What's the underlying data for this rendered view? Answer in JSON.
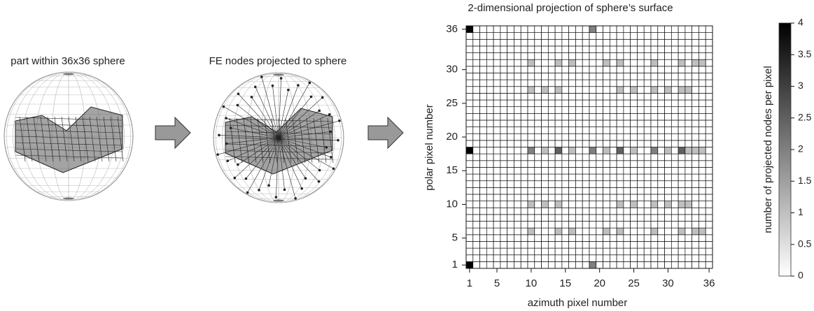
{
  "panels": {
    "left_label": "part within 36x36 sphere",
    "middle_label": "FE nodes projected to sphere"
  },
  "chart_data": {
    "type": "heatmap",
    "title": "2-dimensional projection of sphere’s surface",
    "x_label": "azimuth pixel number",
    "y_label": "polar pixel number",
    "xlim": [
      0.5,
      36.5
    ],
    "ylim": [
      0.5,
      36.5
    ],
    "xticks": [
      1,
      5,
      10,
      15,
      20,
      25,
      30,
      36
    ],
    "yticks": [
      1,
      5,
      10,
      15,
      20,
      25,
      30,
      36
    ],
    "colormap": [
      "#ffffff",
      "#000000"
    ],
    "clim": [
      0,
      4
    ],
    "cticks": [
      0,
      0.5,
      1,
      1.5,
      2,
      2.5,
      3,
      3.5,
      4
    ],
    "colorbar_label": "number of projected nodes per pixel",
    "z": [
      [
        4,
        0,
        0,
        0,
        0,
        0,
        0,
        0,
        0,
        0,
        0,
        0,
        0,
        0,
        0,
        0,
        0,
        0,
        2,
        0,
        0,
        0,
        0,
        0,
        0,
        0,
        0,
        0,
        0,
        0,
        0,
        0,
        0,
        0,
        0,
        0
      ],
      [
        0,
        0,
        0,
        0,
        0,
        0,
        0,
        0,
        0,
        0,
        0,
        0,
        0,
        0,
        0,
        0,
        0,
        0,
        0,
        0,
        0,
        0,
        0,
        0,
        0,
        0,
        0,
        0,
        0,
        0,
        0,
        0,
        0,
        0,
        0,
        0
      ],
      [
        0,
        0,
        0,
        0,
        0,
        0,
        0,
        0,
        0,
        0,
        0,
        0,
        0,
        0,
        0,
        0,
        0,
        0,
        0,
        0,
        0,
        0,
        0,
        0,
        0,
        0,
        0,
        0,
        0,
        0,
        0,
        0,
        0,
        0,
        0,
        0
      ],
      [
        0,
        0,
        0,
        0,
        0,
        0,
        0,
        0,
        0,
        0,
        0,
        0,
        0,
        0,
        0,
        0,
        0,
        0,
        0,
        0,
        0,
        0,
        0,
        0,
        0,
        0,
        0,
        0,
        0,
        0,
        0,
        0,
        0,
        0,
        0,
        0
      ],
      [
        0,
        0,
        0,
        0,
        0,
        0,
        0,
        0,
        0,
        0,
        0,
        0,
        0,
        0,
        0,
        0,
        0,
        0,
        0,
        0,
        0,
        0,
        0,
        0,
        0,
        0,
        0,
        0,
        0,
        0,
        0,
        0,
        0,
        0,
        0,
        0
      ],
      [
        0,
        0,
        0,
        0,
        0,
        0,
        0,
        0,
        0,
        1,
        0,
        0,
        0,
        1,
        0,
        1,
        0,
        0,
        0,
        0,
        1,
        0,
        1,
        0,
        0,
        0,
        0,
        1,
        0,
        0,
        0,
        1,
        0,
        1,
        1,
        0
      ],
      [
        0,
        0,
        0,
        0,
        0,
        0,
        0,
        0,
        0,
        0,
        0,
        0,
        0,
        0,
        0,
        0,
        0,
        0,
        0,
        0,
        0,
        0,
        0,
        0,
        0,
        0,
        0,
        0,
        0,
        0,
        0,
        0,
        0,
        0,
        0,
        0
      ],
      [
        0,
        0,
        0,
        0,
        0,
        0,
        0,
        0,
        0,
        0,
        0,
        0,
        0,
        0,
        0,
        0,
        0,
        0,
        0,
        0,
        0,
        0,
        0,
        0,
        0,
        0,
        0,
        0,
        0,
        0,
        0,
        0,
        0,
        0,
        0,
        0
      ],
      [
        0,
        0,
        0,
        0,
        0,
        0,
        0,
        0,
        0,
        0,
        0,
        0,
        0,
        0,
        0,
        0,
        0,
        0,
        0,
        0,
        0,
        0,
        0,
        0,
        0,
        0,
        0,
        0,
        0,
        0,
        0,
        0,
        0,
        0,
        0,
        0
      ],
      [
        0,
        0,
        0,
        0,
        0,
        0,
        0,
        0,
        0,
        1,
        0,
        1,
        0,
        1,
        0,
        0,
        0,
        0,
        0,
        0,
        0,
        0,
        1,
        0,
        1,
        0,
        0,
        1,
        0,
        1,
        0,
        1,
        1,
        0,
        0,
        0
      ],
      [
        0,
        0,
        0,
        0,
        0,
        0,
        0,
        0,
        0,
        0,
        0,
        0,
        0,
        0,
        0,
        0,
        0,
        0,
        0,
        0,
        0,
        0,
        0,
        0,
        0,
        0,
        0,
        0,
        0,
        0,
        0,
        0,
        0,
        0,
        0,
        0
      ],
      [
        0,
        0,
        0,
        0,
        0,
        0,
        0,
        0,
        0,
        0,
        0,
        0,
        0,
        0,
        0,
        0,
        0,
        0,
        0,
        0,
        0,
        0,
        0,
        0,
        0,
        0,
        0,
        0,
        0,
        0,
        0,
        0,
        0,
        0,
        0,
        0
      ],
      [
        0,
        0,
        0,
        0,
        0,
        0,
        0,
        0,
        0,
        0,
        0,
        0,
        0,
        0,
        0,
        0,
        0,
        0,
        0,
        0,
        0,
        0,
        0,
        0,
        0,
        0,
        0,
        0,
        0,
        0,
        0,
        0,
        0,
        0,
        0,
        0
      ],
      [
        0,
        0,
        0,
        0,
        0,
        0,
        0,
        0,
        0,
        0,
        0,
        0,
        0,
        0,
        0,
        0,
        0,
        0,
        0,
        0,
        0,
        0,
        0,
        0,
        0,
        0,
        0,
        0,
        0,
        0,
        0,
        0,
        0,
        0,
        0,
        0
      ],
      [
        0,
        0,
        0,
        0,
        0,
        0,
        0,
        0,
        0,
        0,
        0,
        0,
        0,
        0,
        0,
        0,
        0,
        0,
        0,
        0,
        0,
        0,
        0,
        0,
        0,
        0,
        0,
        0,
        0,
        0,
        0,
        0,
        0,
        0,
        0,
        0
      ],
      [
        0,
        0,
        0,
        0,
        0,
        0,
        0,
        0,
        0,
        0,
        0,
        0,
        0,
        0,
        0,
        0,
        0,
        0,
        0,
        0,
        0,
        0,
        0,
        0,
        0,
        0,
        0,
        0,
        0,
        0,
        0,
        0,
        0,
        0,
        0,
        0
      ],
      [
        0,
        0,
        0,
        0,
        0,
        0,
        0,
        0,
        0,
        0,
        0,
        0,
        0,
        0,
        0,
        0,
        0,
        0,
        0,
        0,
        0,
        0,
        0,
        0,
        0,
        0,
        0,
        0,
        0,
        0,
        0,
        0,
        0,
        0,
        0,
        0
      ],
      [
        4,
        0,
        0,
        0,
        0,
        0,
        0,
        0,
        0,
        2,
        0,
        1,
        0,
        2.5,
        0,
        1,
        0,
        0,
        2,
        0,
        1,
        0,
        2.5,
        0,
        1,
        0,
        0,
        2,
        0,
        1,
        0,
        2.5,
        1,
        1,
        1,
        0
      ],
      [
        0,
        0,
        0,
        0,
        0,
        0,
        0,
        0,
        0,
        0,
        0,
        0,
        0,
        0,
        0,
        0,
        0,
        0,
        0,
        0,
        0,
        0,
        0,
        0,
        0,
        0,
        0,
        0,
        0,
        0,
        0,
        0,
        0,
        0,
        0,
        0
      ],
      [
        0,
        0,
        0,
        0,
        0,
        0,
        0,
        0,
        0,
        0,
        0,
        0,
        0,
        0,
        0,
        0,
        0,
        0,
        0,
        0,
        0,
        0,
        0,
        0,
        0,
        0,
        0,
        0,
        0,
        0,
        0,
        0,
        0,
        0,
        0,
        0
      ],
      [
        0,
        0,
        0,
        0,
        0,
        0,
        0,
        0,
        0,
        0,
        0,
        0,
        0,
        0,
        0,
        0,
        0,
        0,
        0,
        0,
        0,
        0,
        0,
        0,
        0,
        0,
        0,
        0,
        0,
        0,
        0,
        0,
        0,
        0,
        0,
        0
      ],
      [
        0,
        0,
        0,
        0,
        0,
        0,
        0,
        0,
        0,
        0,
        0,
        0,
        0,
        0,
        0,
        0,
        0,
        0,
        0,
        0,
        0,
        0,
        0,
        0,
        0,
        0,
        0,
        0,
        0,
        0,
        0,
        0,
        0,
        0,
        0,
        0
      ],
      [
        0,
        0,
        0,
        0,
        0,
        0,
        0,
        0,
        0,
        0,
        0,
        0,
        0,
        0,
        0,
        0,
        0,
        0,
        0,
        0,
        0,
        0,
        0,
        0,
        0,
        0,
        0,
        0,
        0,
        0,
        0,
        0,
        0,
        0,
        0,
        0
      ],
      [
        0,
        0,
        0,
        0,
        0,
        0,
        0,
        0,
        0,
        0,
        0,
        0,
        0,
        0,
        0,
        0,
        0,
        0,
        0,
        0,
        0,
        0,
        0,
        0,
        0,
        0,
        0,
        0,
        0,
        0,
        0,
        0,
        0,
        0,
        0,
        0
      ],
      [
        0,
        0,
        0,
        0,
        0,
        0,
        0,
        0,
        0,
        0,
        0,
        0,
        0,
        0,
        0,
        0,
        0,
        0,
        0,
        0,
        0,
        0,
        0,
        0,
        0,
        0,
        0,
        0,
        0,
        0,
        0,
        0,
        0,
        0,
        0,
        0
      ],
      [
        0,
        0,
        0,
        0,
        0,
        0,
        0,
        0,
        0,
        0,
        0,
        0,
        0,
        0,
        0,
        0,
        0,
        0,
        0,
        0,
        0,
        0,
        0,
        0,
        0,
        0,
        0,
        0,
        0,
        0,
        0,
        0,
        0,
        0,
        0,
        0
      ],
      [
        0,
        0,
        0,
        0,
        0,
        0,
        0,
        0,
        0,
        1,
        0,
        1,
        0,
        1,
        0,
        0,
        0,
        0,
        0,
        0,
        0,
        0,
        1,
        0,
        1,
        0,
        0,
        1,
        0,
        1,
        0,
        1,
        1,
        0,
        0,
        0
      ],
      [
        0,
        0,
        0,
        0,
        0,
        0,
        0,
        0,
        0,
        0,
        0,
        0,
        0,
        0,
        0,
        0,
        0,
        0,
        0,
        0,
        0,
        0,
        0,
        0,
        0,
        0,
        0,
        0,
        0,
        0,
        0,
        0,
        0,
        0,
        0,
        0
      ],
      [
        0,
        0,
        0,
        0,
        0,
        0,
        0,
        0,
        0,
        0,
        0,
        0,
        0,
        0,
        0,
        0,
        0,
        0,
        0,
        0,
        0,
        0,
        0,
        0,
        0,
        0,
        0,
        0,
        0,
        0,
        0,
        0,
        0,
        0,
        0,
        0
      ],
      [
        0,
        0,
        0,
        0,
        0,
        0,
        0,
        0,
        0,
        0,
        0,
        0,
        0,
        0,
        0,
        0,
        0,
        0,
        0,
        0,
        0,
        0,
        0,
        0,
        0,
        0,
        0,
        0,
        0,
        0,
        0,
        0,
        0,
        0,
        0,
        0
      ],
      [
        0,
        0,
        0,
        0,
        0,
        0,
        0,
        0,
        0,
        1,
        0,
        0,
        0,
        1,
        0,
        1,
        0,
        0,
        0,
        0,
        1,
        0,
        1,
        0,
        0,
        0,
        0,
        1,
        0,
        0,
        0,
        1,
        0,
        1,
        1,
        0
      ],
      [
        0,
        0,
        0,
        0,
        0,
        0,
        0,
        0,
        0,
        0,
        0,
        0,
        0,
        0,
        0,
        0,
        0,
        0,
        0,
        0,
        0,
        0,
        0,
        0,
        0,
        0,
        0,
        0,
        0,
        0,
        0,
        0,
        0,
        0,
        0,
        0
      ],
      [
        0,
        0,
        0,
        0,
        0,
        0,
        0,
        0,
        0,
        0,
        0,
        0,
        0,
        0,
        0,
        0,
        0,
        0,
        0,
        0,
        0,
        0,
        0,
        0,
        0,
        0,
        0,
        0,
        0,
        0,
        0,
        0,
        0,
        0,
        0,
        0
      ],
      [
        0,
        0,
        0,
        0,
        0,
        0,
        0,
        0,
        0,
        0,
        0,
        0,
        0,
        0,
        0,
        0,
        0,
        0,
        0,
        0,
        0,
        0,
        0,
        0,
        0,
        0,
        0,
        0,
        0,
        0,
        0,
        0,
        0,
        0,
        0,
        0
      ],
      [
        0,
        0,
        0,
        0,
        0,
        0,
        0,
        0,
        0,
        0,
        0,
        0,
        0,
        0,
        0,
        0,
        0,
        0,
        0,
        0,
        0,
        0,
        0,
        0,
        0,
        0,
        0,
        0,
        0,
        0,
        0,
        0,
        0,
        0,
        0,
        0
      ],
      [
        4,
        0,
        0,
        0,
        0,
        0,
        0,
        0,
        0,
        0,
        0,
        0,
        0,
        0,
        0,
        0,
        0,
        0,
        2,
        0,
        0,
        0,
        0,
        0,
        0,
        0,
        0,
        0,
        0,
        0,
        0,
        0,
        0,
        0,
        0,
        0
      ]
    ]
  }
}
